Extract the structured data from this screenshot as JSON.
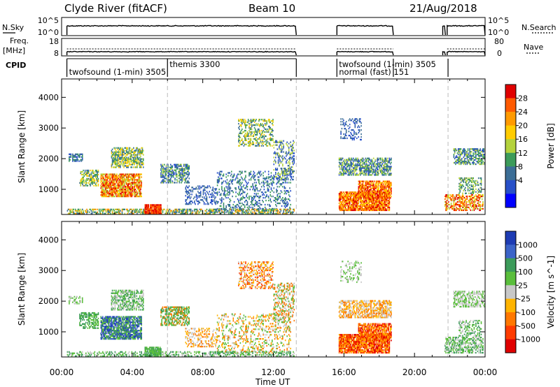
{
  "header": {
    "station": "Clyde River (fitACF)",
    "beam": "Beam 10",
    "date": "21/Aug/2018"
  },
  "param_panels": {
    "nsky_label": "N.Sky",
    "nsearch_label": "N.Search",
    "nsky_ticks": [
      "10^5",
      "10^0"
    ],
    "nsearch_ticks": [
      "10^5",
      "10^0"
    ],
    "freq_label_1": "Freq.",
    "freq_label_2": "[MHz]",
    "freq_ticks": [
      "18",
      "8"
    ],
    "nave_label": "Nave",
    "nave_ticks": [
      "80",
      "0"
    ],
    "cpid_label": "CPID"
  },
  "cpid_segments": [
    {
      "start": 0.3,
      "end": 6.0,
      "label": "twofsound (1-min) 3505",
      "row": 2
    },
    {
      "start": 6.0,
      "end": 13.3,
      "label": "themis 3300",
      "row": 1
    },
    {
      "start": 15.6,
      "end": 21.9,
      "label": "twofsound (1-min) 3505",
      "row": 1
    },
    {
      "start": 15.6,
      "end": 18.8,
      "label": "normal (fast) 151",
      "row": 2
    }
  ],
  "chart_data": [
    {
      "type": "heatmap",
      "name": "power",
      "x_range": [
        0,
        24
      ],
      "x_ticks": [
        "00:00",
        "04:00",
        "08:00",
        "12:00",
        "16:00",
        "20:00",
        "00:00"
      ],
      "xlabel": "Time UT",
      "y_range": [
        180,
        4600
      ],
      "y_ticks": [
        1000,
        2000,
        3000,
        4000
      ],
      "ylabel": "Slant Range [km]",
      "colorbar_label": "Power [dB]",
      "colorbar_ticks": [
        "28",
        "24",
        "20",
        "16",
        "12",
        "8",
        "4"
      ],
      "colorbar_colors": [
        "#e00000",
        "#ff5a00",
        "#ff9a00",
        "#ffcc00",
        "#b4d23c",
        "#3c9b5a",
        "#3c6e96",
        "#2850c8",
        "#0000ff"
      ],
      "data_gaps": [
        [
          13.3,
          15.6
        ],
        [
          18.8,
          21.6
        ]
      ]
    },
    {
      "type": "heatmap",
      "name": "velocity",
      "x_range": [
        0,
        24
      ],
      "x_ticks": [
        "00:00",
        "04:00",
        "08:00",
        "12:00",
        "16:00",
        "20:00",
        "00:00"
      ],
      "xlabel": "Time UT",
      "y_range": [
        180,
        4600
      ],
      "y_ticks": [
        1000,
        2000,
        3000,
        4000
      ],
      "ylabel": "Slant Range [km]",
      "colorbar_label": "Velocity [m s^-1]",
      "colorbar_ticks": [
        "1000",
        "500",
        "100",
        "25",
        "-25",
        "-100",
        "-500",
        "-1000"
      ],
      "colorbar_colors": [
        "#1e3cb4",
        "#3c64c8",
        "#3c9b5a",
        "#5abe3c",
        "#c8c8c8",
        "#ffb400",
        "#ff7800",
        "#ff3c00",
        "#e00000"
      ],
      "data_gaps": [
        [
          13.3,
          15.6
        ],
        [
          18.8,
          21.6
        ]
      ]
    }
  ]
}
